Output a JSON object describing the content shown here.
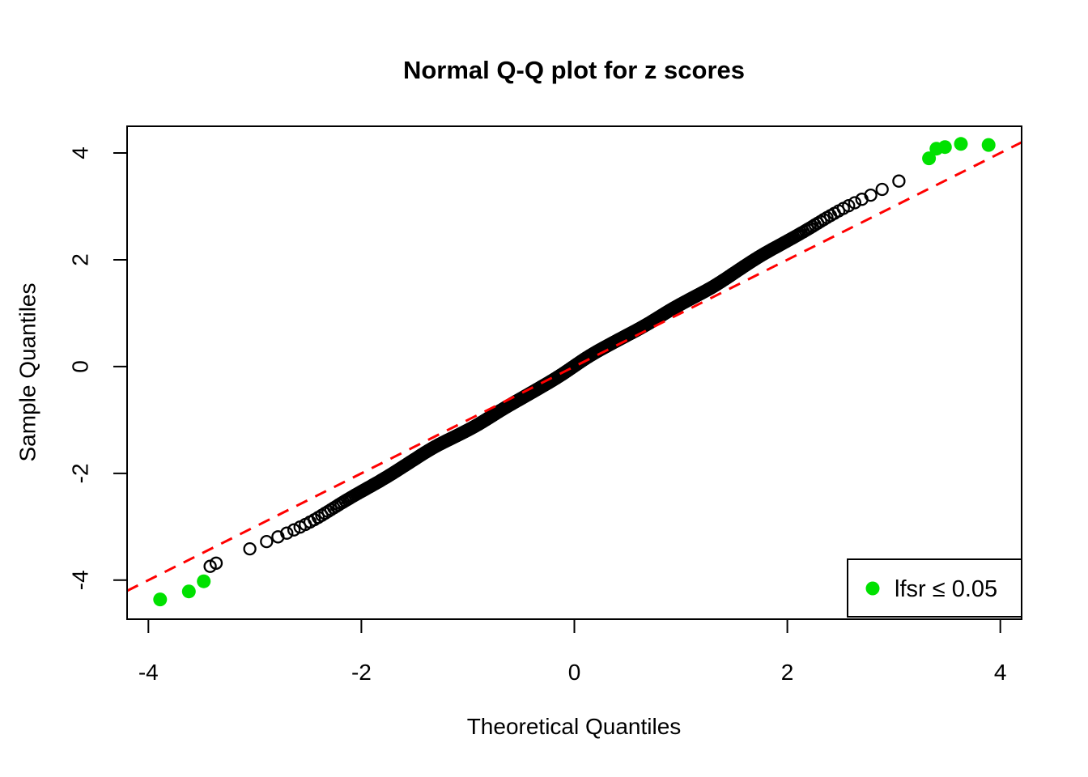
{
  "chart_data": {
    "type": "scatter",
    "subtype": "normal-qq-plot",
    "title": "Normal Q-Q plot for z scores",
    "xlabel": "Theoretical Quantiles",
    "ylabel": "Sample Quantiles",
    "x_ticks": [
      -4,
      -2,
      0,
      2,
      4
    ],
    "y_ticks": [
      -4,
      -2,
      0,
      2,
      4
    ],
    "x_tick_labels": [
      "-4",
      "-2",
      "0",
      "2",
      "4"
    ],
    "y_tick_labels": [
      "-4",
      "-2",
      "0",
      "2",
      "4"
    ],
    "xlim": [
      -4.2,
      4.2
    ],
    "ylim": [
      -4.73,
      4.5
    ],
    "grid": false,
    "background_color": "#ffffff",
    "axis_color": "#000000",
    "reference_line": {
      "type": "identity",
      "slope": 1,
      "intercept": 0,
      "color": "#FF0000",
      "style": "dashed",
      "dash": [
        15,
        11
      ],
      "width": 3
    },
    "points_style": {
      "marker": "open-circle",
      "color": "#000000",
      "radius": 7,
      "stroke_width": 2.3
    },
    "n_points": 1300,
    "black_x_range": [
      -3.45,
      3.3
    ],
    "extra_points": [
      [
        -3.42,
        -3.74
      ]
    ],
    "qq_curve": [
      [
        -3.45,
        -3.77
      ],
      [
        -3.42,
        -3.74
      ],
      [
        -3.3,
        -3.62
      ],
      [
        -3.18,
        -3.52
      ],
      [
        -3.05,
        -3.44
      ],
      [
        -2.9,
        -3.31
      ],
      [
        -2.75,
        -3.17
      ],
      [
        -2.6,
        -3.01
      ],
      [
        -2.45,
        -2.85
      ],
      [
        -2.3,
        -2.68
      ],
      [
        -2.1,
        -2.45
      ],
      [
        -1.9,
        -2.22
      ],
      [
        -1.7,
        -1.99
      ],
      [
        -1.5,
        -1.76
      ],
      [
        -1.3,
        -1.52
      ],
      [
        -1.1,
        -1.29
      ],
      [
        -0.9,
        -1.06
      ],
      [
        -0.7,
        -0.82
      ],
      [
        -0.5,
        -0.59
      ],
      [
        -0.3,
        -0.35
      ],
      [
        -0.1,
        -0.12
      ],
      [
        0.1,
        0.12
      ],
      [
        0.3,
        0.35
      ],
      [
        0.5,
        0.59
      ],
      [
        0.7,
        0.82
      ],
      [
        0.9,
        1.06
      ],
      [
        1.1,
        1.29
      ],
      [
        1.3,
        1.52
      ],
      [
        1.5,
        1.76
      ],
      [
        1.7,
        1.99
      ],
      [
        1.9,
        2.22
      ],
      [
        2.1,
        2.46
      ],
      [
        2.3,
        2.7
      ],
      [
        2.5,
        2.93
      ],
      [
        2.7,
        3.15
      ],
      [
        2.9,
        3.36
      ],
      [
        3.1,
        3.54
      ],
      [
        3.3,
        3.72
      ]
    ],
    "significant": {
      "label": "lfsr ≤ 0.05",
      "color": "#00E100",
      "radius": 8.5,
      "lower": [
        [
          -3.89,
          -4.36
        ],
        [
          -3.62,
          -4.21
        ],
        [
          -3.48,
          -4.02
        ]
      ],
      "upper": [
        [
          3.33,
          3.9
        ],
        [
          3.4,
          4.08
        ],
        [
          3.48,
          4.11
        ],
        [
          3.63,
          4.17
        ],
        [
          3.89,
          4.15
        ]
      ]
    },
    "legend": {
      "text": "lfsr ≤ 0.05",
      "position": "bottomright",
      "marker": "filled-circle",
      "marker_color": "#00E100"
    }
  }
}
